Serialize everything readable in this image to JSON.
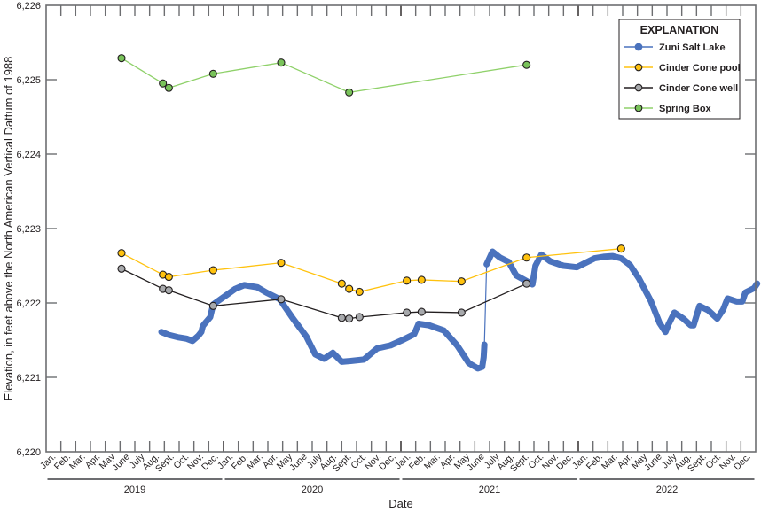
{
  "chart_data": {
    "type": "line",
    "title": "",
    "xlabel": "Date",
    "ylabel": "Elevation, in feet above the North American Vertical Dattum of 1988",
    "ylim": [
      6220,
      6226
    ],
    "yticks": [
      6220,
      6221,
      6222,
      6223,
      6224,
      6225,
      6226
    ],
    "ytick_labels": [
      "6,220",
      "6,221",
      "6,222",
      "6,223",
      "6,224",
      "6,225",
      "6,226"
    ],
    "xlim": [
      "2019-01-01",
      "2023-01-01"
    ],
    "years": [
      "2019",
      "2020",
      "2021",
      "2022"
    ],
    "month_labels": [
      "Jan.",
      "Feb.",
      "Mar.",
      "Apr.",
      "May",
      "June",
      "July",
      "Aug.",
      "Sept.",
      "Oct.",
      "Nov.",
      "Dec."
    ],
    "grid": false,
    "legend": {
      "title": "EXPLANATION",
      "position": "upper right",
      "entries": [
        "Zuni Salt Lake",
        "Cinder Cone pool",
        "Cinder Cone well",
        "Spring Box"
      ]
    },
    "series": [
      {
        "name": "Zuni Salt Lake",
        "style": "continuous",
        "color": "#4a72bd",
        "x_months": [
          7.8,
          8.3,
          8.9,
          9.5,
          9.9,
          10.3,
          10.5,
          10.6,
          10.8,
          11.1,
          11.3,
          12.8,
          13.4,
          14.3,
          14.9,
          15.8,
          16.7,
          17.6,
          18.2,
          18.8,
          19.4,
          20.0,
          20.6,
          21.5,
          22.4,
          23.3,
          24.2,
          24.9,
          25.2,
          25.9,
          26.9,
          27.8,
          28.6,
          29.2,
          29.5,
          29.6,
          29.65,
          29.8,
          30.2,
          30.7,
          31.3,
          31.8,
          32.9,
          33.1,
          33.5,
          34.1,
          35.0,
          35.9,
          36.5,
          37.1,
          37.7,
          38.3,
          38.9,
          39.5,
          40.1,
          40.9,
          41.5,
          41.9,
          42.1,
          42.5,
          43.1,
          43.6,
          43.8,
          44.2,
          44.8,
          45.4,
          45.6,
          45.8,
          46.1,
          46.7,
          47.1,
          47.3,
          47.9,
          48.1
        ],
        "values": [
          6221.61,
          6221.57,
          6221.54,
          6221.52,
          6221.49,
          6221.56,
          6221.61,
          6221.69,
          6221.74,
          6221.81,
          6221.98,
          6222.19,
          6222.24,
          6222.21,
          6222.14,
          6222.05,
          6221.79,
          6221.55,
          6221.31,
          6221.25,
          6221.33,
          6221.21,
          6221.22,
          6221.24,
          6221.39,
          6221.43,
          6221.51,
          6221.58,
          6221.72,
          6221.7,
          6221.63,
          6221.43,
          6221.19,
          6221.12,
          6221.14,
          6221.27,
          6221.44,
          6222.52,
          6222.69,
          6222.61,
          6222.55,
          6222.37,
          6222.25,
          6222.5,
          6222.65,
          6222.56,
          6222.5,
          6222.48,
          6222.54,
          6222.6,
          6222.62,
          6222.63,
          6222.6,
          6222.51,
          6222.33,
          6222.03,
          6221.73,
          6221.61,
          6221.71,
          6221.87,
          6221.79,
          6221.7,
          6221.7,
          6221.96,
          6221.9,
          6221.79,
          6221.85,
          6221.91,
          6222.06,
          6222.02,
          6222.02,
          6222.14,
          6222.2,
          6222.26
        ]
      },
      {
        "name": "Cinder Cone pool",
        "style": "points+line",
        "color": "#ffc20e",
        "dates": [
          "2019-05",
          "2019-08",
          "2019-09",
          "2019-12",
          "2020-04",
          "2020-08",
          "2020-09",
          "2020-10",
          "2021-01",
          "2021-02",
          "2021-04",
          "2021-09",
          "2022-03"
        ],
        "x_months": [
          5.1,
          7.9,
          8.3,
          11.3,
          15.9,
          20.0,
          20.5,
          21.2,
          24.4,
          25.4,
          28.1,
          32.5,
          38.9
        ],
        "values": [
          6222.67,
          6222.38,
          6222.35,
          6222.44,
          6222.54,
          6222.26,
          6222.19,
          6222.15,
          6222.3,
          6222.31,
          6222.29,
          6222.61,
          6222.73
        ]
      },
      {
        "name": "Cinder Cone well",
        "style": "points+line",
        "color": "#a7a9ac",
        "dates": [
          "2019-05",
          "2019-08",
          "2019-09",
          "2019-12",
          "2020-04",
          "2020-08",
          "2020-09",
          "2020-10",
          "2021-01",
          "2021-02",
          "2021-04",
          "2021-09"
        ],
        "x_months": [
          5.1,
          7.9,
          8.3,
          11.3,
          15.9,
          20.0,
          20.5,
          21.2,
          24.4,
          25.4,
          28.1,
          32.5
        ],
        "values": [
          6222.46,
          6222.19,
          6222.17,
          6221.96,
          6222.05,
          6221.8,
          6221.79,
          6221.81,
          6221.87,
          6221.88,
          6221.87,
          6222.26
        ]
      },
      {
        "name": "Spring Box",
        "style": "points+line",
        "color": "#79c35a",
        "dates": [
          "2019-05",
          "2019-08",
          "2019-09",
          "2019-12",
          "2020-04",
          "2020-09",
          "2021-09"
        ],
        "x_months": [
          5.1,
          7.9,
          8.3,
          11.3,
          15.9,
          20.5,
          32.5
        ],
        "values": [
          6225.29,
          6224.95,
          6224.89,
          6225.08,
          6225.23,
          6224.83,
          6225.2
        ]
      }
    ]
  },
  "legend": {
    "title": "EXPLANATION",
    "items": [
      {
        "label": "Zuni Salt Lake",
        "line": "#4a72bd",
        "fill": "#4a72bd",
        "stroke": "#4a72bd"
      },
      {
        "label": "Cinder Cone pool",
        "line": "#ffc20e",
        "fill": "#ffc20e",
        "stroke": "#231f20"
      },
      {
        "label": "Cinder Cone well",
        "line": "#231f20",
        "fill": "#a7a9ac",
        "stroke": "#231f20"
      },
      {
        "label": "Spring Box",
        "line": "#8fd16a",
        "fill": "#79c35a",
        "stroke": "#231f20"
      }
    ]
  },
  "axes": {
    "x_title": "Date",
    "y_title": "Elevation, in feet above the North American Vertical Dattum of 1988"
  }
}
